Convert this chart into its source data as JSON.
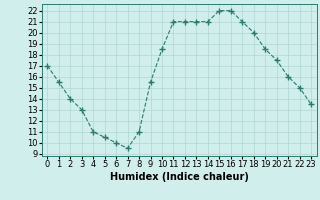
{
  "x": [
    0,
    1,
    2,
    3,
    4,
    5,
    6,
    7,
    8,
    9,
    10,
    11,
    12,
    13,
    14,
    15,
    16,
    17,
    18,
    19,
    20,
    21,
    22,
    23
  ],
  "y": [
    17,
    15.5,
    14,
    13,
    11,
    10.5,
    10,
    9.5,
    11,
    15.5,
    18.5,
    21,
    21,
    21,
    21,
    22,
    22,
    21,
    20,
    18.5,
    17.5,
    16,
    15,
    13.5
  ],
  "line_color": "#2a7a70",
  "marker": "+",
  "marker_size": 4,
  "bg_color": "#d0eeeb",
  "grid_color": "#b0d8d4",
  "xlabel": "Humidex (Indice chaleur)",
  "xlabel_fontsize": 7,
  "tick_fontsize": 6,
  "xlim": [
    -0.5,
    23.5
  ],
  "ylim": [
    8.8,
    22.6
  ],
  "yticks": [
    9,
    10,
    11,
    12,
    13,
    14,
    15,
    16,
    17,
    18,
    19,
    20,
    21,
    22
  ],
  "xticks": [
    0,
    1,
    2,
    3,
    4,
    5,
    6,
    7,
    8,
    9,
    10,
    11,
    12,
    13,
    14,
    15,
    16,
    17,
    18,
    19,
    20,
    21,
    22,
    23
  ]
}
